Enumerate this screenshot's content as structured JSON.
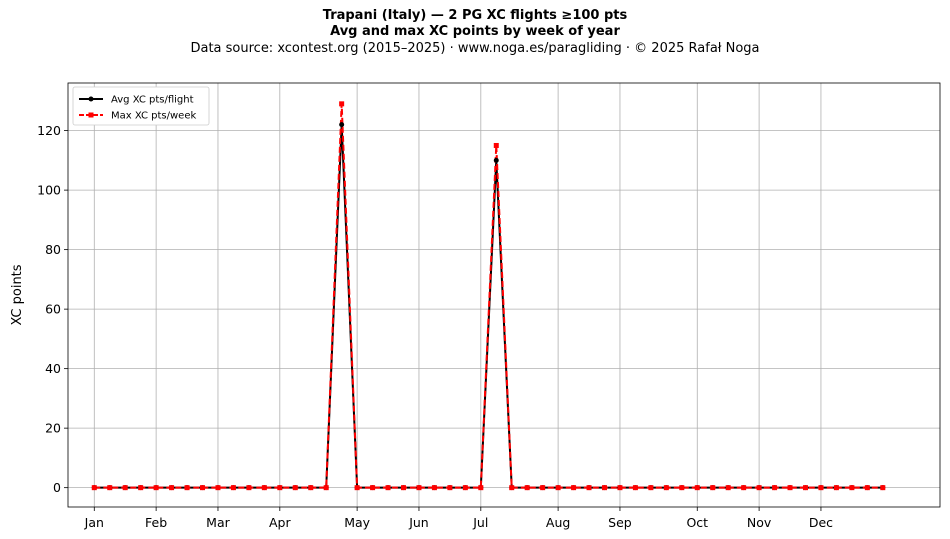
{
  "header": {
    "title_line1": "Trapani (Italy)  —  2 PG XC flights ≥100 pts",
    "title_line2": "Avg and max XC points by week of year",
    "subtitle": "Data source: xcontest.org (2015–2025)  ·  www.noga.es/paragliding  ·  © 2025 Rafał Noga"
  },
  "chart_data": {
    "type": "line",
    "title": "Trapani (Italy)  —  2 PG XC flights ≥100 pts",
    "subtitle": "Avg and max XC points by week of year",
    "xlabel": "",
    "ylabel": "XC points",
    "x_axis": "week of year",
    "xlim": [
      -1.7,
      54.7
    ],
    "ylim": [
      -6.5,
      136
    ],
    "yticks": [
      0,
      20,
      40,
      60,
      80,
      100,
      120
    ],
    "month_ticks": [
      {
        "label": "Jan",
        "week": 0
      },
      {
        "label": "Feb",
        "week": 4
      },
      {
        "label": "Mar",
        "week": 8
      },
      {
        "label": "Apr",
        "week": 12
      },
      {
        "label": "May",
        "week": 17
      },
      {
        "label": "Jun",
        "week": 21
      },
      {
        "label": "Jul",
        "week": 25
      },
      {
        "label": "Aug",
        "week": 30
      },
      {
        "label": "Sep",
        "week": 34
      },
      {
        "label": "Oct",
        "week": 39
      },
      {
        "label": "Nov",
        "week": 43
      },
      {
        "label": "Dec",
        "week": 47
      }
    ],
    "grid": true,
    "legend_position": "top-left",
    "x": [
      0,
      1,
      2,
      3,
      4,
      5,
      6,
      7,
      8,
      9,
      10,
      11,
      12,
      13,
      14,
      15,
      16,
      17,
      18,
      19,
      20,
      21,
      22,
      23,
      24,
      25,
      26,
      27,
      28,
      29,
      30,
      31,
      32,
      33,
      34,
      35,
      36,
      37,
      38,
      39,
      40,
      41,
      42,
      43,
      44,
      45,
      46,
      47,
      48,
      49,
      50,
      51
    ],
    "series": [
      {
        "name": "Avg XC pts/flight",
        "color": "#000000",
        "style": "solid",
        "marker": "circle",
        "values": [
          0,
          0,
          0,
          0,
          0,
          0,
          0,
          0,
          0,
          0,
          0,
          0,
          0,
          0,
          0,
          0,
          122,
          0,
          0,
          0,
          0,
          0,
          0,
          0,
          0,
          0,
          110,
          0,
          0,
          0,
          0,
          0,
          0,
          0,
          0,
          0,
          0,
          0,
          0,
          0,
          0,
          0,
          0,
          0,
          0,
          0,
          0,
          0,
          0,
          0,
          0,
          0
        ]
      },
      {
        "name": "Max XC pts/week",
        "color": "#ff0000",
        "style": "dashed",
        "marker": "square",
        "values": [
          0,
          0,
          0,
          0,
          0,
          0,
          0,
          0,
          0,
          0,
          0,
          0,
          0,
          0,
          0,
          0,
          129,
          0,
          0,
          0,
          0,
          0,
          0,
          0,
          0,
          0,
          115,
          0,
          0,
          0,
          0,
          0,
          0,
          0,
          0,
          0,
          0,
          0,
          0,
          0,
          0,
          0,
          0,
          0,
          0,
          0,
          0,
          0,
          0,
          0,
          0,
          0
        ]
      }
    ]
  }
}
